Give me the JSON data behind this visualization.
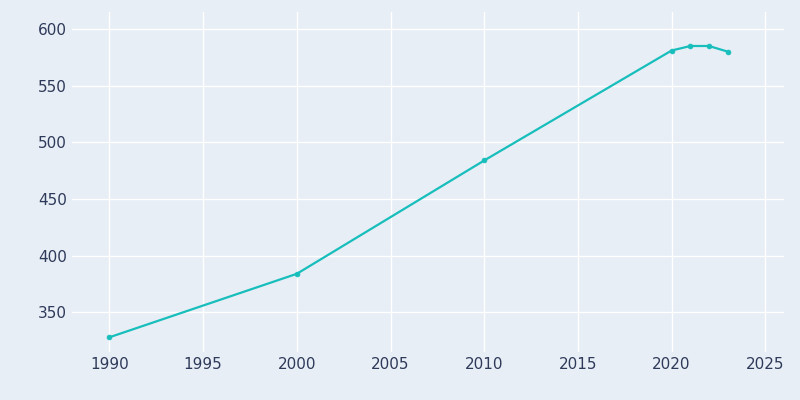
{
  "years": [
    1990,
    2000,
    2010,
    2020,
    2021,
    2022,
    2023
  ],
  "population": [
    328,
    384,
    484,
    581,
    585,
    585,
    580
  ],
  "line_color": "#17BEBB",
  "marker": "o",
  "marker_size": 3.5,
  "line_width": 1.6,
  "plot_bg_color": "#E8EEF6",
  "fig_bg_color": "#E8EEF6",
  "grid_color": "#FFFFFF",
  "tick_label_color": "#2E3A59",
  "xlim": [
    1988,
    2026
  ],
  "ylim": [
    315,
    615
  ],
  "yticks": [
    350,
    400,
    450,
    500,
    550,
    600
  ],
  "xticks": [
    1990,
    1995,
    2000,
    2005,
    2010,
    2015,
    2020,
    2025
  ]
}
